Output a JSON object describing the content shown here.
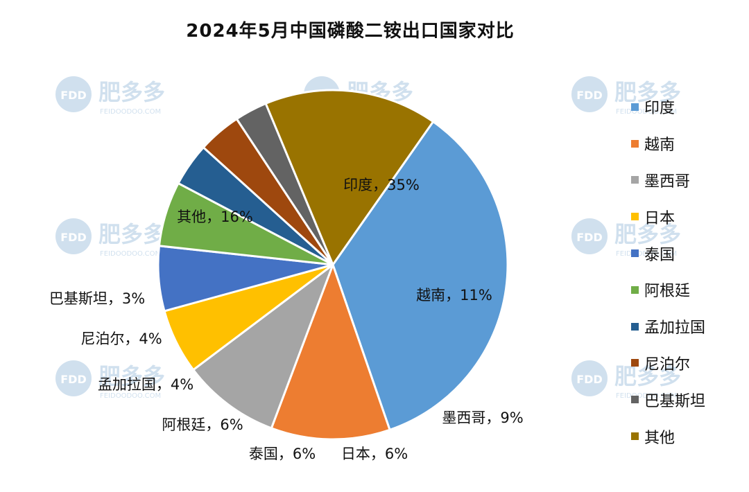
{
  "chart_data": {
    "type": "pie",
    "title": "2024年5月中国磷酸二铵出口国家对比",
    "slices": [
      {
        "label": "印度",
        "value": 35,
        "display": "印度，35%",
        "color": "#5B9BD5"
      },
      {
        "label": "越南",
        "value": 11,
        "display": "越南，11%",
        "color": "#ED7D31"
      },
      {
        "label": "墨西哥",
        "value": 9,
        "display": "墨西哥，9%",
        "color": "#A5A5A5"
      },
      {
        "label": "日本",
        "value": 6,
        "display": "日本，6%",
        "color": "#FFC000"
      },
      {
        "label": "泰国",
        "value": 6,
        "display": "泰国，6%",
        "color": "#4472C4"
      },
      {
        "label": "阿根廷",
        "value": 6,
        "display": "阿根廷，6%",
        "color": "#70AD47"
      },
      {
        "label": "孟加拉国",
        "value": 4,
        "display": "孟加拉国，4%",
        "color": "#255E91"
      },
      {
        "label": "尼泊尔",
        "value": 4,
        "display": "尼泊尔，4%",
        "color": "#9E480E"
      },
      {
        "label": "巴基斯坦",
        "value": 3,
        "display": "巴基斯坦，3%",
        "color": "#636363"
      },
      {
        "label": "其他",
        "value": 16,
        "display": "其他，16%",
        "color": "#997300"
      }
    ],
    "legend_position": "right"
  },
  "watermark": {
    "brand": "肥多多",
    "mark": "FDD",
    "site": "FEIDOODOO.COM"
  }
}
